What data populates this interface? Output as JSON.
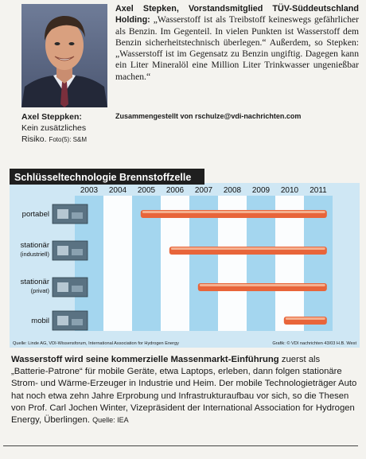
{
  "portrait": {
    "caption_name": "Axel Steppken:",
    "caption_text": "Kein zusätzliches Risiko.",
    "credit": "Foto(5): S&M"
  },
  "quote": {
    "lead": "Axel Stepken, Vorstandsmitglied TÜV-Süddeutschland Holding:",
    "text": " „Wasserstoff ist als Treibstoff keineswegs gefährlicher als Benzin. Im Gegenteil. In vielen Punkten ist Wasserstoff dem Benzin sicherheitstechnisch überlegen.“ Außerdem, so Stepken: „Wasserstoff ist im Gegensatz zu Benzin ungiftig. Dagegen kann ein Liter Mineralöl eine Million Liter Trinkwasser ungenießbar machen.“"
  },
  "compiled": "Zusammengestellt von rschulze@vdi-nachrichten.com",
  "chart_data": {
    "type": "timeline",
    "title": "Schlüsseltechnologie Brennstoffzelle",
    "years": [
      "2003",
      "2004",
      "2005",
      "2006",
      "2007",
      "2008",
      "2009",
      "2010",
      "2011"
    ],
    "rows": [
      {
        "label": "portabel",
        "start": 2005,
        "end": 2011
      },
      {
        "label": "stationär",
        "sublabel": "(industriell)",
        "start": 2006,
        "end": 2011
      },
      {
        "label": "stationär",
        "sublabel": "(privat)",
        "start": 2007,
        "end": 2011
      },
      {
        "label": "mobil",
        "start": 2010,
        "end": 2011
      }
    ],
    "source": "Quelle: Linde AG, VDI-Wissensforum, International Association for Hydrogen Energy",
    "graphic_credit": "Grafik: © VDI nachrichten  43/03 H.B. West",
    "colors": {
      "title_bg": "#1f1f1f",
      "stripe": "#9fd4ee",
      "bar": "#e8653a",
      "bar_light": "#f5b08f"
    }
  },
  "article": {
    "lead": "Wasserstoff wird seine kommerzielle Massenmarkt-Einführung",
    "text": " zuerst als „Batterie-Patrone“ für mobile Geräte, etwa Laptops, erleben, dann folgen stationäre Strom- und Wärme-Erzeuger in Industrie und Heim. Der mobile Technologieträger Auto hat noch etwa zehn Jahre Erprobung und Infrastrukturaufbau vor sich, so die Thesen von Prof. Carl Jochen Winter, Vizepräsident der International Association for Hydrogen Energy, Überlingen.",
    "source": "Quelle: IEA"
  }
}
